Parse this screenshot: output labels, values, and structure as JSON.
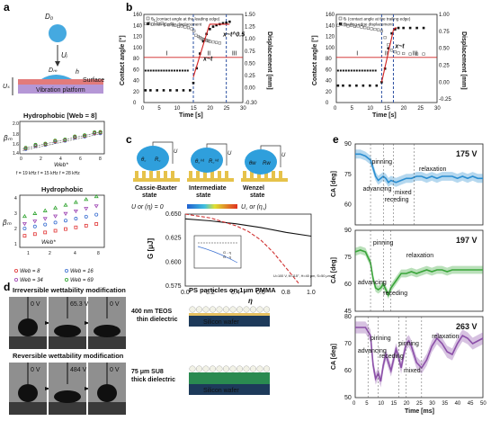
{
  "panel_labels": {
    "a": "a",
    "b": "b",
    "c": "c",
    "d": "d",
    "e": "e"
  },
  "panel_a": {
    "diagram": {
      "drop_label": "D₀",
      "velocity_label": "Uᵢ",
      "diameter_label": "Dₘ",
      "height_label": "h",
      "surface_label": "Surface",
      "platform_label": "Vibration platform",
      "vibration_label": "Uₛ"
    },
    "chart_top": {
      "title": "Hydrophobic [Web = 8]",
      "ylabel": "βₘ",
      "xlabel": "Web*",
      "legend": "f = 19 kHz  f = 15 kHz  f = 28 kHz",
      "legend_items": [
        {
          "label": "f = 19 kHz",
          "color": "#3a6fd1"
        },
        {
          "label": "f = 15 kHz",
          "color": "#e03030"
        },
        {
          "label": "f = 28 kHz",
          "color": "#2aa12a"
        }
      ],
      "yticks": [
        "1.4",
        "1.6",
        "1.8",
        "2.0"
      ],
      "xticks": [
        "0",
        "2",
        "4",
        "6",
        "8"
      ]
    },
    "chart_bottom": {
      "title": "Hydrophobic",
      "ylabel": "βₘ",
      "xlabel": "Web*",
      "yticks": [
        "1",
        "2",
        "3",
        "4"
      ],
      "xticks": [
        "1",
        "2",
        "4",
        "8"
      ],
      "legend_items": [
        {
          "label": "Web = 8",
          "color": "#e03030"
        },
        {
          "label": "Web = 16",
          "color": "#3a6fd1"
        },
        {
          "label": "Web = 34",
          "color": "#9b3fb0"
        },
        {
          "label": "Web = 69",
          "color": "#2aa12a"
        }
      ]
    }
  },
  "chart_data": [
    {
      "type": "scatter",
      "title": "",
      "xlabel": "Time [s]",
      "ylabel": "Contact angle [°]",
      "ylabel_right": "Displacement [mm]",
      "xlim": [
        0,
        30
      ],
      "ylim": [
        0,
        160
      ],
      "ylim_right": [
        -0.3,
        1.5
      ],
      "xticks": [
        "0",
        "5",
        "10",
        "15",
        "20",
        "25",
        "30"
      ],
      "yticks": [
        "0",
        "20",
        "40",
        "60",
        "80",
        "100",
        "120",
        "140",
        "160"
      ],
      "yticks_right": [
        "-0.30",
        "0.00",
        "0.25",
        "0.50",
        "0.75",
        "1.00",
        "1.25",
        "1.50"
      ],
      "legend": [
        "θₐ (contact angle at the leading edge)",
        "Leading edge displacement"
      ],
      "regions": [
        "I",
        "II",
        "III"
      ],
      "annotations": [
        "x~t",
        "x~t^0.5"
      ],
      "series": [
        {
          "name": "θₐ (contact angle at the leading edge)",
          "axis": "left",
          "x": [
            0.5,
            1.5,
            2.5,
            3.5,
            4.5,
            5.5,
            6.5,
            7.5,
            8.5,
            9.5,
            10.5,
            11.5,
            12.5,
            13.5,
            14.5,
            15.2,
            15.8,
            16.5,
            17.0,
            17.5,
            18.0,
            18.5,
            19.0,
            19.5,
            20.0,
            21.0,
            22.0,
            23.0
          ],
          "y": [
            143,
            144,
            142,
            145,
            143,
            144,
            142,
            141,
            143,
            140,
            138,
            139,
            137,
            136,
            134,
            130,
            122,
            120,
            118,
            116,
            115,
            114,
            113,
            112,
            111,
            110,
            109,
            108
          ]
        },
        {
          "name": "Leading edge displacement",
          "axis": "right",
          "x": [
            0.5,
            2,
            4,
            6,
            8,
            10,
            12,
            14,
            15,
            16,
            17,
            18,
            19,
            20,
            21,
            22,
            23,
            24,
            25,
            26
          ],
          "y": [
            -0.05,
            -0.05,
            -0.05,
            -0.05,
            -0.05,
            -0.05,
            -0.05,
            -0.05,
            0.1,
            0.4,
            0.7,
            0.95,
            1.1,
            1.2,
            1.25,
            1.28,
            1.3,
            1.32,
            1.33,
            1.35
          ]
        }
      ]
    },
    {
      "type": "scatter",
      "title": "",
      "xlabel": "Time [s]",
      "ylabel": "Contact angle [°]",
      "ylabel_right": "Displacement [mm]",
      "xlim": [
        0,
        30
      ],
      "ylim": [
        0,
        160
      ],
      "ylim_right": [
        -0.3,
        1.0
      ],
      "xticks": [
        "0",
        "5",
        "10",
        "15",
        "20",
        "25",
        "30"
      ],
      "yticks": [
        "0",
        "20",
        "40",
        "60",
        "80",
        "100",
        "120",
        "140",
        "160"
      ],
      "yticks_right": [
        "-0.25",
        "0.00",
        "0.25",
        "0.50",
        "0.75",
        "1.00"
      ],
      "legend": [
        "θᵣ (contact angle at the trailing edge)",
        "Trailing edge displacement"
      ],
      "regions": [
        "I",
        "II",
        "III"
      ],
      "annotations": [
        "x~t"
      ],
      "series": [
        {
          "name": "θᵣ (contact angle at the trailing edge)",
          "axis": "left",
          "x": [
            0.5,
            1.5,
            2.5,
            3.5,
            4.5,
            5.5,
            6.5,
            7.5,
            8.5,
            9.5,
            10.5,
            11.5,
            12.5,
            13.5,
            14.5,
            15.5,
            16.5,
            17.5,
            18.5,
            20,
            22,
            24,
            26
          ],
          "y": [
            140,
            142,
            141,
            139,
            140,
            138,
            139,
            137,
            136,
            135,
            134,
            133,
            132,
            130,
            118,
            105,
            95,
            92,
            90,
            89,
            88,
            88,
            88
          ]
        },
        {
          "name": "Trailing edge displacement",
          "axis": "right",
          "x": [
            0.5,
            2,
            4,
            6,
            8,
            10,
            12,
            13.5,
            14.5,
            15.5,
            16.5,
            17.5,
            18.5,
            20,
            22,
            24,
            26
          ],
          "y": [
            -0.05,
            -0.05,
            -0.05,
            -0.05,
            -0.05,
            -0.05,
            -0.05,
            0.0,
            0.2,
            0.5,
            0.72,
            0.78,
            0.8,
            0.8,
            0.8,
            0.8,
            0.8
          ]
        }
      ]
    },
    {
      "type": "line",
      "title": "",
      "xlabel": "η",
      "ylabel": "G [μJ]",
      "xlim": [
        0,
        1
      ],
      "ylim": [
        0.575,
        0.65
      ],
      "xticks": [
        "0.0",
        "0.2",
        "0.4",
        "0.6",
        "0.8",
        "1.0"
      ],
      "yticks": [
        "0.575",
        "0.600",
        "0.625",
        "0.650"
      ],
      "inset_legend": [
        "G - η",
        "G̃ - η"
      ],
      "inset_note": "U=100 V, θ=115°, H=40 μm, S=50 μm",
      "series": [
        {
          "name": "",
          "color": "#111111",
          "x": [
            0.0,
            0.2,
            0.4,
            0.6,
            0.8,
            1.0
          ],
          "y": [
            0.645,
            0.643,
            0.64,
            0.636,
            0.631,
            0.627
          ]
        },
        {
          "name": "",
          "color": "#d03030",
          "x": [
            0.0,
            0.2,
            0.4,
            0.5,
            0.6,
            0.7,
            0.8,
            0.9
          ],
          "y": [
            0.65,
            0.646,
            0.638,
            0.632,
            0.623,
            0.61,
            0.594,
            0.578
          ]
        }
      ]
    },
    {
      "type": "line",
      "title": "175 V",
      "xlabel": "",
      "ylabel": "CA [deg]",
      "xlim": [
        0,
        50
      ],
      "ylim": [
        50,
        90
      ],
      "yticks": [
        "60",
        "75",
        "90"
      ],
      "annotations": [
        "pinning",
        "advancing",
        "receding",
        "mixed",
        "relaxation"
      ],
      "series": [
        {
          "name": "",
          "color": "#2b8ed1",
          "x": [
            0,
            2,
            4,
            6,
            7,
            8,
            9,
            10,
            11,
            12,
            13,
            14,
            16,
            18,
            20,
            22,
            24,
            26,
            28,
            30,
            32,
            34,
            36,
            38,
            40,
            42,
            44,
            46,
            48,
            50
          ],
          "y": [
            85,
            85,
            84,
            82,
            78,
            74,
            72,
            73,
            74,
            73,
            71,
            72,
            71,
            72,
            73,
            73,
            74,
            74,
            73,
            74,
            73,
            74,
            74,
            74,
            73,
            74,
            73,
            74,
            73,
            73
          ]
        }
      ]
    },
    {
      "type": "line",
      "title": "197 V",
      "xlabel": "",
      "ylabel": "CA [deg]",
      "xlim": [
        0,
        50
      ],
      "ylim": [
        45,
        90
      ],
      "yticks": [
        "45",
        "60",
        "75",
        "90"
      ],
      "annotations": [
        "pinning",
        "advancing",
        "receding",
        "relaxation"
      ],
      "series": [
        {
          "name": "",
          "color": "#3aa53a",
          "x": [
            0,
            2,
            4,
            6,
            7,
            8,
            9,
            10,
            11,
            12,
            13,
            14,
            16,
            18,
            20,
            22,
            24,
            26,
            28,
            30,
            32,
            34,
            36,
            38,
            40,
            42,
            44,
            46,
            48,
            50
          ],
          "y": [
            78,
            79,
            78,
            72,
            63,
            58,
            57,
            58,
            60,
            57,
            54,
            58,
            62,
            66,
            66,
            67,
            66,
            67,
            68,
            67,
            68,
            68,
            67,
            68,
            68,
            68,
            68,
            68,
            68,
            68
          ]
        }
      ]
    },
    {
      "type": "line",
      "title": "263 V",
      "xlabel": "Time [ms]",
      "ylabel": "CA [deg]",
      "xlim": [
        0,
        50
      ],
      "ylim": [
        50,
        80
      ],
      "xticks": [
        "0",
        "5",
        "10",
        "15",
        "20",
        "25",
        "30",
        "35",
        "40",
        "45",
        "50"
      ],
      "yticks": [
        "50",
        "60",
        "70",
        "80"
      ],
      "annotations": [
        "pinning",
        "advancing",
        "receding",
        "pinning",
        "relaxation",
        "mixed"
      ],
      "series": [
        {
          "name": "",
          "color": "#8b4fa8",
          "x": [
            0,
            2,
            4,
            6,
            7,
            8,
            9,
            10,
            11,
            12,
            13,
            14,
            15,
            16,
            17,
            18,
            19,
            20,
            21,
            22,
            23,
            24,
            26,
            28,
            30,
            32,
            34,
            36,
            38,
            40,
            42,
            44,
            46,
            48,
            50
          ],
          "y": [
            76,
            76,
            76,
            73,
            62,
            57,
            59,
            56,
            62,
            66,
            63,
            60,
            64,
            68,
            65,
            61,
            66,
            70,
            71,
            69,
            66,
            63,
            61,
            64,
            69,
            72,
            70,
            67,
            66,
            70,
            73,
            72,
            70,
            71,
            72
          ]
        }
      ]
    }
  ],
  "panel_c": {
    "states": [
      "Cassie-Baxter state",
      "Intermediate state",
      "Wenzel state"
    ],
    "state_labels": [
      [
        "θ꜀",
        "R꜀"
      ],
      [
        "θ꜀ⁱⁿᵗ",
        "R꜀ⁱⁿᵗ"
      ],
      [
        "θw",
        "Rw"
      ]
    ],
    "u_label": "U",
    "bar_left": "U or (η) = 0",
    "bar_right": "U꜀ or (η꜀)"
  },
  "panel_d": {
    "irreversible_title": "Irreversible wettability modification",
    "reversible_title": "Reversible wettability modification",
    "irreversible_voltages": [
      "0 V",
      "65.3 V",
      "0 V"
    ],
    "reversible_voltages": [
      "0 V",
      "484 V",
      "0 V"
    ],
    "ps_title": "PS particles on 1μm PMMA",
    "layer1_label": "400 nm TEOS thin dielectric",
    "layer1_lines": [
      "400 nm TEOS",
      "thin dielectric"
    ],
    "layer2_lines": [
      "75 μm SU8",
      "thick dielectric"
    ],
    "wafer": "Silicon wafer"
  }
}
